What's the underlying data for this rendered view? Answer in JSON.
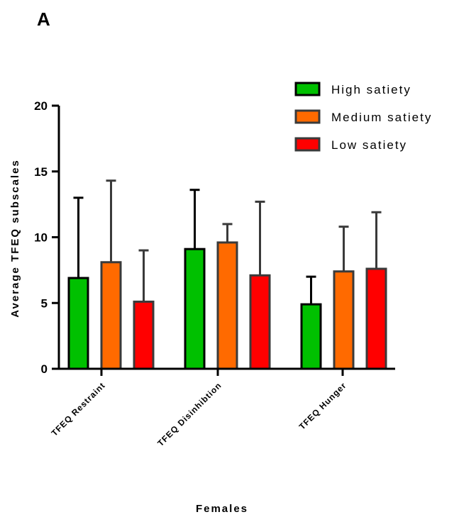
{
  "panel_label": "A",
  "chart_data": {
    "type": "bar",
    "categories": [
      "TFEQ Restraint",
      "TFEQ Disinhibtion",
      "TFEQ Hunger"
    ],
    "series": [
      {
        "name": "High satiety",
        "color": "#00c000",
        "values": [
          6.9,
          9.1,
          4.9
        ],
        "errors": [
          6.1,
          4.5,
          2.1
        ]
      },
      {
        "name": "Medium satiety",
        "color": "#ff6a00",
        "values": [
          8.1,
          9.6,
          7.4
        ],
        "errors": [
          6.2,
          1.4,
          3.4
        ]
      },
      {
        "name": "Low satiety",
        "color": "#ff0000",
        "values": [
          5.1,
          7.1,
          7.6
        ],
        "errors": [
          3.9,
          5.6,
          4.3
        ]
      }
    ],
    "xlabel": "Females",
    "ylabel": "Average TFEQ subscales",
    "ylim": [
      0,
      20
    ],
    "yticks": [
      "0",
      "5",
      "10",
      "15",
      "20"
    ],
    "legend_position": "top-right",
    "grid": false
  }
}
